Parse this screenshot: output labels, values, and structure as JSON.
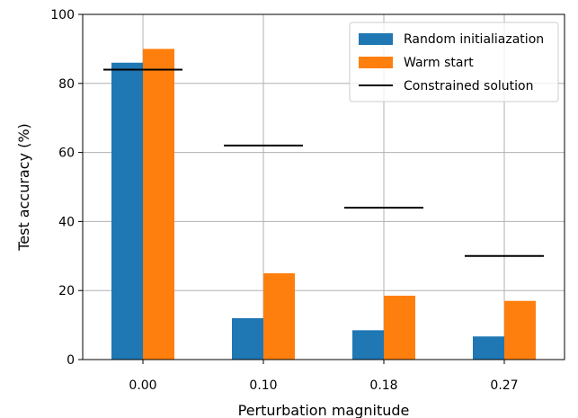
{
  "chart_data": {
    "type": "bar",
    "categories": [
      "0.00",
      "0.10",
      "0.18",
      "0.27"
    ],
    "series": [
      {
        "name": "Random initialiazation",
        "values": [
          86,
          12,
          8.5,
          6.7
        ],
        "color": "#1f77b4"
      },
      {
        "name": "Warm start",
        "values": [
          90,
          25,
          18.5,
          17
        ],
        "color": "#ff7f0e"
      }
    ],
    "reference_lines": {
      "name": "Constrained solution",
      "values": [
        84,
        62,
        44,
        30
      ],
      "color": "#000000"
    },
    "xlabel": "Perturbation magnitude",
    "ylabel": "Test accuracy (%)",
    "ylim": [
      0,
      100
    ],
    "yticks": [
      "0",
      "20",
      "40",
      "60",
      "80",
      "100"
    ],
    "grid": true,
    "legend_position": "top-right"
  }
}
